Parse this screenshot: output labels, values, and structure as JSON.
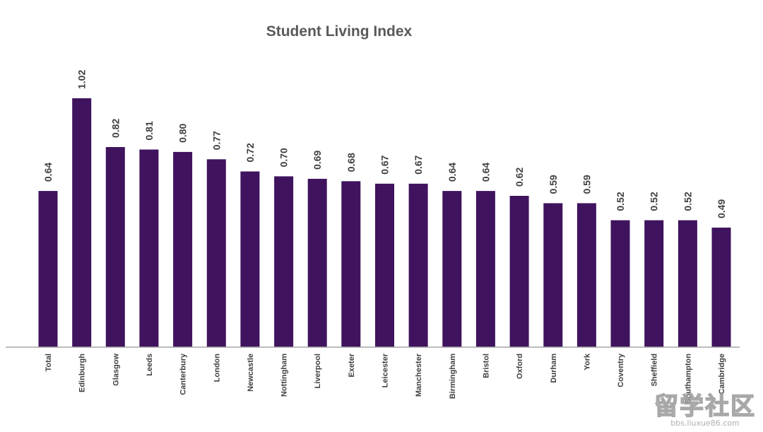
{
  "colors": {
    "bar": "#3f135e",
    "axis": "#a6a6a6",
    "title": "#595959",
    "label": "#404040"
  },
  "chart_data": {
    "type": "bar",
    "title": "Student Living Index",
    "xlabel": "",
    "ylabel": "",
    "ylim": [
      0,
      1.1
    ],
    "grid": false,
    "categories": [
      "Total",
      "Edinburgh",
      "Glasgow",
      "Leeds",
      "Canterbury",
      "London",
      "Newcastle",
      "Nottingham",
      "Liverpool",
      "Exeter",
      "Leicester",
      "Manchester",
      "Birmingham",
      "Bristol",
      "Oxford",
      "Durham",
      "York",
      "Coventry",
      "Sheffield",
      "Southampton",
      "Cambridge"
    ],
    "values": [
      0.64,
      1.02,
      0.82,
      0.81,
      0.8,
      0.77,
      0.72,
      0.7,
      0.69,
      0.68,
      0.67,
      0.67,
      0.64,
      0.64,
      0.62,
      0.59,
      0.59,
      0.52,
      0.52,
      0.52,
      0.49
    ],
    "value_labels": [
      "0.64",
      "1.02",
      "0.82",
      "0.81",
      "0.80",
      "0.77",
      "0.72",
      "0.70",
      "0.69",
      "0.68",
      "0.67",
      "0.67",
      "0.64",
      "0.64",
      "0.62",
      "0.59",
      "0.59",
      "0.52",
      "0.52",
      "0.52",
      "0.49"
    ]
  },
  "watermark": {
    "logo": "留学社区",
    "url": "bbs.liuxue86.com"
  }
}
